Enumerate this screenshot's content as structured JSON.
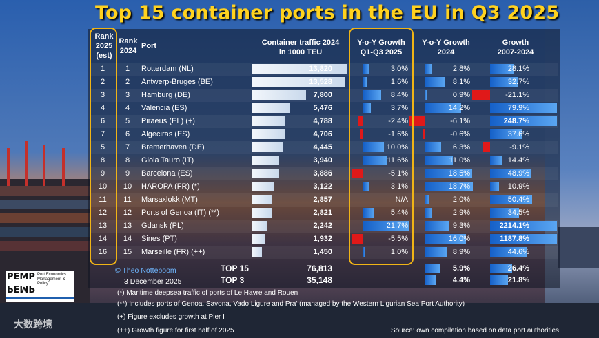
{
  "title": "Top 15 container ports in the EU in Q3 2025",
  "headers": {
    "rank2025": [
      "Rank",
      "2025",
      "(est)"
    ],
    "rank2024": [
      "Rank",
      "2024"
    ],
    "port": "Port",
    "traffic": [
      "Container traffic 2024",
      "in 1000 TEU"
    ],
    "yoy_q": [
      "Y-o-Y Growth",
      "Q1-Q3 2025"
    ],
    "yoy24": [
      "Y-o-Y Growth",
      "2024"
    ],
    "growth": [
      "Growth",
      "2007-2024"
    ]
  },
  "colors": {
    "title": "#ffd21f",
    "highlight": "#f0b416",
    "positive": "#2b7de0",
    "negative": "#e01919"
  },
  "chart_data": {
    "type": "table",
    "title": "Top 15 container ports in the EU in Q3 2025",
    "rows": [
      {
        "rank2025": "1",
        "rank2024": "1",
        "port": "Rotterdam (NL)",
        "traffic": 13820,
        "traffic_label": "13,820",
        "yoy_q": 3.0,
        "yoy_q_label": "3.0%",
        "yoy24": 2.8,
        "yoy24_label": "2.8%",
        "growth": 28.1,
        "growth_label": "28.1%"
      },
      {
        "rank2025": "2",
        "rank2024": "2",
        "port": "Antwerp-Bruges (BE)",
        "traffic": 13528,
        "traffic_label": "13,528",
        "yoy_q": 1.6,
        "yoy_q_label": "1.6%",
        "yoy24": 8.1,
        "yoy24_label": "8.1%",
        "growth": 32.7,
        "growth_label": "32.7%"
      },
      {
        "rank2025": "3",
        "rank2024": "3",
        "port": "Hamburg (DE)",
        "traffic": 7800,
        "traffic_label": "7,800",
        "yoy_q": 8.4,
        "yoy_q_label": "8.4%",
        "yoy24": 0.9,
        "yoy24_label": "0.9%",
        "growth": -21.1,
        "growth_label": "-21.1%"
      },
      {
        "rank2025": "4",
        "rank2024": "4",
        "port": "Valencia (ES)",
        "traffic": 5476,
        "traffic_label": "5,476",
        "yoy_q": 3.7,
        "yoy_q_label": "3.7%",
        "yoy24": 14.2,
        "yoy24_label": "14.2%",
        "growth": 79.9,
        "growth_label": "79.9%"
      },
      {
        "rank2025": "6",
        "rank2024": "5",
        "port": "Piraeus (EL) (+)",
        "traffic": 4788,
        "traffic_label": "4,788",
        "yoy_q": -2.4,
        "yoy_q_label": "-2.4%",
        "yoy24": -6.1,
        "yoy24_label": "-6.1%",
        "growth": 248.7,
        "growth_label": "248.7%"
      },
      {
        "rank2025": "7",
        "rank2024": "6",
        "port": "Algeciras (ES)",
        "traffic": 4706,
        "traffic_label": "4,706",
        "yoy_q": -1.6,
        "yoy_q_label": "-1.6%",
        "yoy24": -0.6,
        "yoy24_label": "-0.6%",
        "growth": 37.6,
        "growth_label": "37.6%"
      },
      {
        "rank2025": "5",
        "rank2024": "7",
        "port": "Bremerhaven (DE)",
        "traffic": 4445,
        "traffic_label": "4,445",
        "yoy_q": 10.0,
        "yoy_q_label": "10.0%",
        "yoy24": 6.3,
        "yoy24_label": "6.3%",
        "growth": -9.1,
        "growth_label": "-9.1%"
      },
      {
        "rank2025": "8",
        "rank2024": "8",
        "port": "Gioia Tauro (IT)",
        "traffic": 3940,
        "traffic_label": "3,940",
        "yoy_q": 11.6,
        "yoy_q_label": "11.6%",
        "yoy24": 11.0,
        "yoy24_label": "11.0%",
        "growth": 14.4,
        "growth_label": "14.4%"
      },
      {
        "rank2025": "9",
        "rank2024": "9",
        "port": "Barcelona (ES)",
        "traffic": 3886,
        "traffic_label": "3,886",
        "yoy_q": -5.1,
        "yoy_q_label": "-5.1%",
        "yoy24": 18.5,
        "yoy24_label": "18.5%",
        "growth": 48.9,
        "growth_label": "48.9%"
      },
      {
        "rank2025": "10",
        "rank2024": "10",
        "port": "HAROPA (FR) (*)",
        "traffic": 3122,
        "traffic_label": "3,122",
        "yoy_q": 3.1,
        "yoy_q_label": "3.1%",
        "yoy24": 18.7,
        "yoy24_label": "18.7%",
        "growth": 10.9,
        "growth_label": "10.9%"
      },
      {
        "rank2025": "11",
        "rank2024": "11",
        "port": "Marsaxlokk (MT)",
        "traffic": 2857,
        "traffic_label": "2,857",
        "yoy_q": null,
        "yoy_q_label": "N/A",
        "yoy24": 2.0,
        "yoy24_label": "2.0%",
        "growth": 50.4,
        "growth_label": "50.4%"
      },
      {
        "rank2025": "12",
        "rank2024": "12",
        "port": "Ports of Genoa (IT) (**)",
        "traffic": 2821,
        "traffic_label": "2,821",
        "yoy_q": 5.4,
        "yoy_q_label": "5.4%",
        "yoy24": 2.9,
        "yoy24_label": "2.9%",
        "growth": 34.5,
        "growth_label": "34.5%"
      },
      {
        "rank2025": "13",
        "rank2024": "13",
        "port": "Gdansk (PL)",
        "traffic": 2242,
        "traffic_label": "2,242",
        "yoy_q": 21.7,
        "yoy_q_label": "21.7%",
        "yoy24": 9.3,
        "yoy24_label": "9.3%",
        "growth": 2214.1,
        "growth_label": "2214.1%"
      },
      {
        "rank2025": "14",
        "rank2024": "14",
        "port": "Sines (PT)",
        "traffic": 1932,
        "traffic_label": "1,932",
        "yoy_q": -5.5,
        "yoy_q_label": "-5.5%",
        "yoy24": 16.0,
        "yoy24_label": "16.0%",
        "growth": 1187.8,
        "growth_label": "1187.8%"
      },
      {
        "rank2025": "16",
        "rank2024": "15",
        "port": "Marseille (FR) (++)",
        "traffic": 1450,
        "traffic_label": "1,450",
        "yoy_q": 1.0,
        "yoy_q_label": "1.0%",
        "yoy24": 8.9,
        "yoy24_label": "8.9%",
        "growth": 44.6,
        "growth_label": "44.6%"
      }
    ],
    "totals": [
      {
        "label": "TOP 15",
        "traffic_label": "76,813",
        "yoy24": 5.9,
        "yoy24_label": "5.9%",
        "growth": 26.4,
        "growth_label": "26.4%"
      },
      {
        "label": "TOP 3",
        "traffic_label": "35,148",
        "yoy24": 4.4,
        "yoy24_label": "4.4%",
        "growth": 21.8,
        "growth_label": "21.8%"
      }
    ],
    "scales": {
      "traffic_max": 13820,
      "yoy_q_max": 21.7,
      "yoy24_max": 18.7,
      "growth_cap": 80
    }
  },
  "credit": {
    "author": "© Theo Notteboom",
    "date": "3 December 2025",
    "source": "Source: own compilation based on data port authorities"
  },
  "footnotes": [
    "(*) Maritime deepsea traffic of ports of Le Havre and Rouen",
    "(**) Includes ports of Genoa, Savona, Vado Ligure and Pra' (managed by the Western Ligurian Sea Port Authority)",
    "(+) Figure excludes growth at Pier I",
    "(++) Growth figure for first half of 2025"
  ],
  "logo": {
    "line1": "PEMP",
    "line2": "PEMP",
    "sub1": "Port Economics",
    "sub2": "Management & Policy"
  },
  "watermark": "大数跨境"
}
